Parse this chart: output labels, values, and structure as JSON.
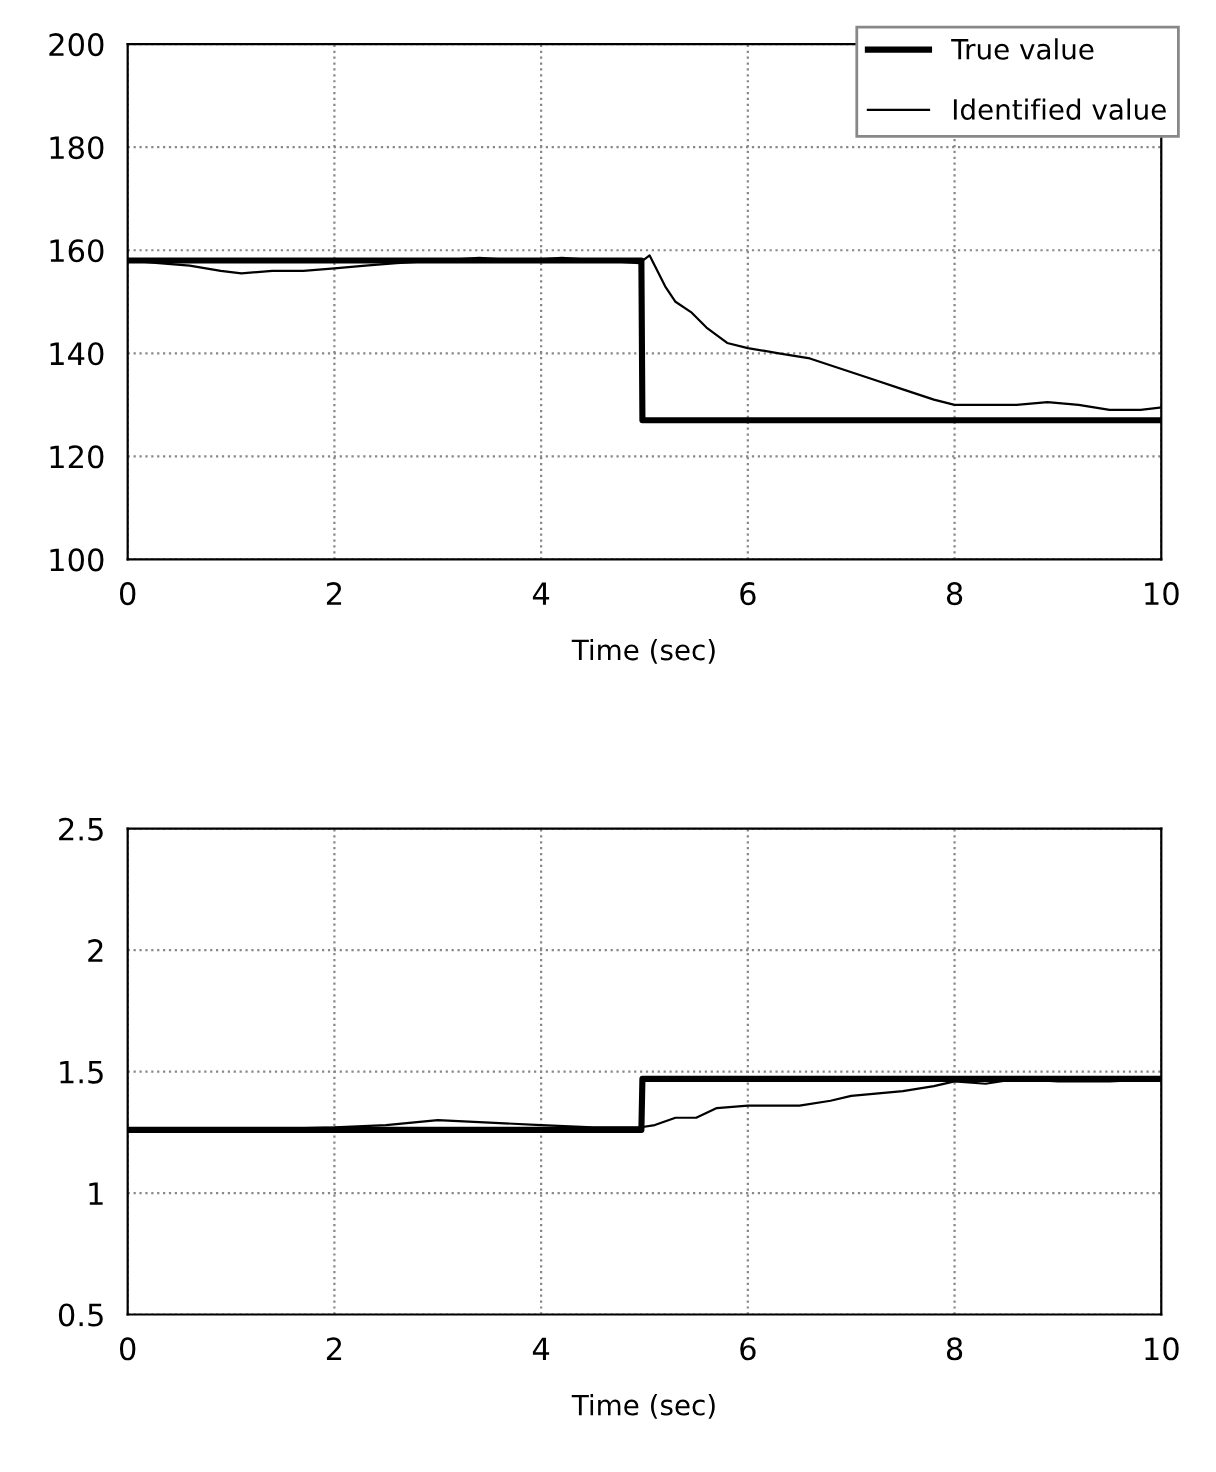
{
  "chart_data": [
    {
      "type": "line",
      "xlabel": "Time (sec)",
      "xlim": [
        0,
        10
      ],
      "xticks": [
        0,
        2,
        4,
        6,
        8,
        10
      ],
      "ylim": [
        100,
        200
      ],
      "yticks": [
        100,
        120,
        140,
        160,
        180,
        200
      ],
      "grid": true,
      "legend": "top right",
      "series": [
        {
          "name": "True value",
          "color": "#000000",
          "x": [
            0,
            4.97,
            4.98,
            10
          ],
          "values": [
            158,
            158,
            127,
            127
          ]
        },
        {
          "name": "Identified value",
          "color": "#000000",
          "x": [
            0,
            0.3,
            0.6,
            0.9,
            1.1,
            1.4,
            1.7,
            2.0,
            2.3,
            2.6,
            3.0,
            3.4,
            3.8,
            4.2,
            4.6,
            4.95,
            5.05,
            5.1,
            5.2,
            5.3,
            5.45,
            5.6,
            5.8,
            6.0,
            6.3,
            6.6,
            6.9,
            7.2,
            7.5,
            7.8,
            8.0,
            8.3,
            8.6,
            8.9,
            9.2,
            9.5,
            9.8,
            10
          ],
          "values": [
            158,
            157.5,
            157,
            156,
            155.5,
            156,
            156,
            156.5,
            157,
            157.5,
            158,
            158.5,
            158,
            158.5,
            158,
            157.5,
            159,
            157,
            153,
            150,
            148,
            145,
            142,
            141,
            140,
            139,
            137,
            135,
            133,
            131,
            130,
            130,
            130,
            130.5,
            130,
            129,
            129,
            129.5
          ]
        }
      ]
    },
    {
      "type": "line",
      "xlabel": "Time (sec)",
      "xlim": [
        0,
        10
      ],
      "xticks": [
        0,
        2,
        4,
        6,
        8,
        10
      ],
      "ylim": [
        0.5,
        2.5
      ],
      "yticks": [
        0.5,
        1,
        1.5,
        2,
        2.5
      ],
      "grid": true,
      "series": [
        {
          "color": "#000000",
          "x": [
            0,
            4.97,
            4.98,
            10
          ],
          "values": [
            1.26,
            1.26,
            1.47,
            1.47
          ]
        },
        {
          "color": "#000000",
          "x": [
            0,
            1,
            2,
            2.5,
            3,
            3.5,
            4,
            4.5,
            4.95,
            5.1,
            5.3,
            5.5,
            5.7,
            6,
            6.5,
            6.8,
            7,
            7.5,
            7.8,
            8,
            8.3,
            8.6,
            9,
            9.5,
            10
          ],
          "values": [
            1.26,
            1.26,
            1.27,
            1.28,
            1.3,
            1.29,
            1.28,
            1.27,
            1.27,
            1.28,
            1.31,
            1.31,
            1.35,
            1.36,
            1.36,
            1.38,
            1.4,
            1.42,
            1.44,
            1.46,
            1.45,
            1.47,
            1.46,
            1.46,
            1.47
          ]
        }
      ]
    }
  ]
}
